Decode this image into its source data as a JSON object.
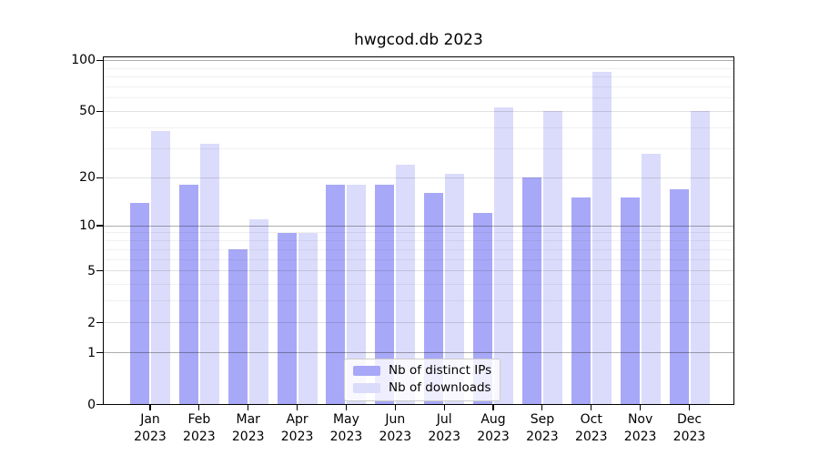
{
  "title": "hwgcod.db 2023",
  "chart_data": {
    "type": "bar",
    "title": "hwgcod.db 2023",
    "categories": [
      "Jan",
      "Feb",
      "Mar",
      "Apr",
      "May",
      "Jun",
      "Jul",
      "Aug",
      "Sep",
      "Oct",
      "Nov",
      "Dec"
    ],
    "year_label": "2023",
    "series": [
      {
        "name": "Nb of distinct IPs",
        "color": "#a8a8f8",
        "values": [
          14,
          18,
          7,
          9,
          18,
          18,
          16,
          12,
          20,
          15,
          15,
          17
        ]
      },
      {
        "name": "Nb of downloads",
        "color": "#dbdbfb",
        "values": [
          38,
          32,
          11,
          9,
          18,
          24,
          21,
          53,
          50,
          86,
          28,
          50
        ]
      }
    ],
    "xlabel": "",
    "ylabel": "",
    "yscale": "log(v+1)",
    "ylim": [
      0,
      106
    ],
    "yticks": [
      0,
      1,
      2,
      5,
      10,
      20,
      50,
      100
    ],
    "ytick_labels": [
      "0",
      "1",
      "2",
      "5",
      "10",
      "20",
      "50",
      "100"
    ],
    "decade_gridlines": [
      1,
      10,
      100
    ],
    "mid_gridlines": [
      2,
      5,
      20,
      50
    ],
    "minor_gridlines": [
      3,
      4,
      6,
      7,
      8,
      9,
      30,
      40,
      60,
      70,
      80,
      90
    ],
    "grid": true,
    "legend_position": "lower center"
  },
  "colors": {
    "background": "#ffffff",
    "frame": "#000000",
    "bar_ips": "#a8a8f8",
    "bar_downloads": "#dbdbfb",
    "grid_decade": "rgba(0,0,0,0.32)",
    "grid_mid": "rgba(0,0,0,0.12)",
    "grid_minor": "rgba(0,0,0,0.06)"
  }
}
